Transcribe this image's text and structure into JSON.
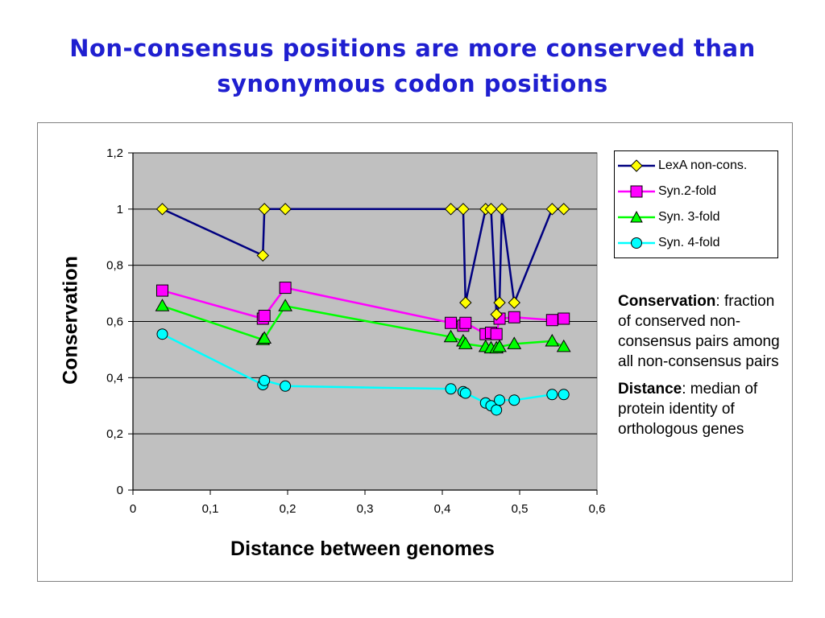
{
  "slide": {
    "title_line1": "Non-consensus positions are more conserved than",
    "title_line2": "synonymous codon positions"
  },
  "annotation": {
    "conservation_term": "Conservation",
    "conservation_def": ": fraction of conserved non-consensus pairs among all non-consensus pairs",
    "distance_term": "Distance",
    "distance_def": ": median of protein identity of orthologous genes"
  },
  "chart_data": {
    "type": "line",
    "title": "",
    "xlabel": "Distance between genomes",
    "ylabel": "Conservation",
    "xlim": [
      0,
      0.6
    ],
    "ylim": [
      0,
      1.2
    ],
    "x_ticks": [
      "0",
      "0,1",
      "0,2",
      "0,3",
      "0,4",
      "0,5",
      "0,6"
    ],
    "y_ticks": [
      "0",
      "0,2",
      "0,4",
      "0,6",
      "0,8",
      "1",
      "1,2"
    ],
    "grid": "horizontal",
    "plot_background": "#c0c0c0",
    "legend_position": "right",
    "series": [
      {
        "name": "LexA non-cons.",
        "color": "#000080",
        "marker": "diamond",
        "marker_fill": "#ffff00",
        "points": [
          [
            0.038,
            1.0
          ],
          [
            0.168,
            0.835
          ],
          [
            0.17,
            1.0
          ],
          [
            0.197,
            1.0
          ],
          [
            0.411,
            1.0
          ],
          [
            0.427,
            1.0
          ],
          [
            0.43,
            0.667
          ],
          [
            0.456,
            1.0
          ],
          [
            0.463,
            1.0
          ],
          [
            0.47,
            0.625
          ],
          [
            0.474,
            0.667
          ],
          [
            0.477,
            1.0
          ],
          [
            0.493,
            0.667
          ],
          [
            0.542,
            1.0
          ],
          [
            0.557,
            1.0
          ]
        ]
      },
      {
        "name": "Syn.2-fold",
        "color": "#ff00ff",
        "marker": "square",
        "marker_fill": "#ff00ff",
        "points": [
          [
            0.038,
            0.71
          ],
          [
            0.168,
            0.61
          ],
          [
            0.17,
            0.62
          ],
          [
            0.197,
            0.72
          ],
          [
            0.411,
            0.595
          ],
          [
            0.427,
            0.585
          ],
          [
            0.43,
            0.595
          ],
          [
            0.456,
            0.555
          ],
          [
            0.463,
            0.56
          ],
          [
            0.47,
            0.555
          ],
          [
            0.474,
            0.61
          ],
          [
            0.493,
            0.615
          ],
          [
            0.542,
            0.605
          ],
          [
            0.557,
            0.61
          ]
        ]
      },
      {
        "name": "Syn. 3-fold",
        "color": "#00ff00",
        "marker": "triangle",
        "marker_fill": "#00ff00",
        "points": [
          [
            0.038,
            0.655
          ],
          [
            0.168,
            0.535
          ],
          [
            0.17,
            0.54
          ],
          [
            0.197,
            0.655
          ],
          [
            0.411,
            0.545
          ],
          [
            0.427,
            0.53
          ],
          [
            0.43,
            0.52
          ],
          [
            0.456,
            0.51
          ],
          [
            0.463,
            0.505
          ],
          [
            0.47,
            0.505
          ],
          [
            0.474,
            0.51
          ],
          [
            0.493,
            0.52
          ],
          [
            0.542,
            0.53
          ],
          [
            0.557,
            0.51
          ]
        ]
      },
      {
        "name": "Syn. 4-fold",
        "color": "#00ffff",
        "marker": "circle",
        "marker_fill": "#00ffff",
        "points": [
          [
            0.038,
            0.555
          ],
          [
            0.168,
            0.375
          ],
          [
            0.17,
            0.39
          ],
          [
            0.197,
            0.37
          ],
          [
            0.411,
            0.36
          ],
          [
            0.427,
            0.35
          ],
          [
            0.43,
            0.345
          ],
          [
            0.456,
            0.31
          ],
          [
            0.463,
            0.3
          ],
          [
            0.47,
            0.285
          ],
          [
            0.474,
            0.32
          ],
          [
            0.493,
            0.32
          ],
          [
            0.542,
            0.34
          ],
          [
            0.557,
            0.34
          ]
        ]
      }
    ]
  }
}
